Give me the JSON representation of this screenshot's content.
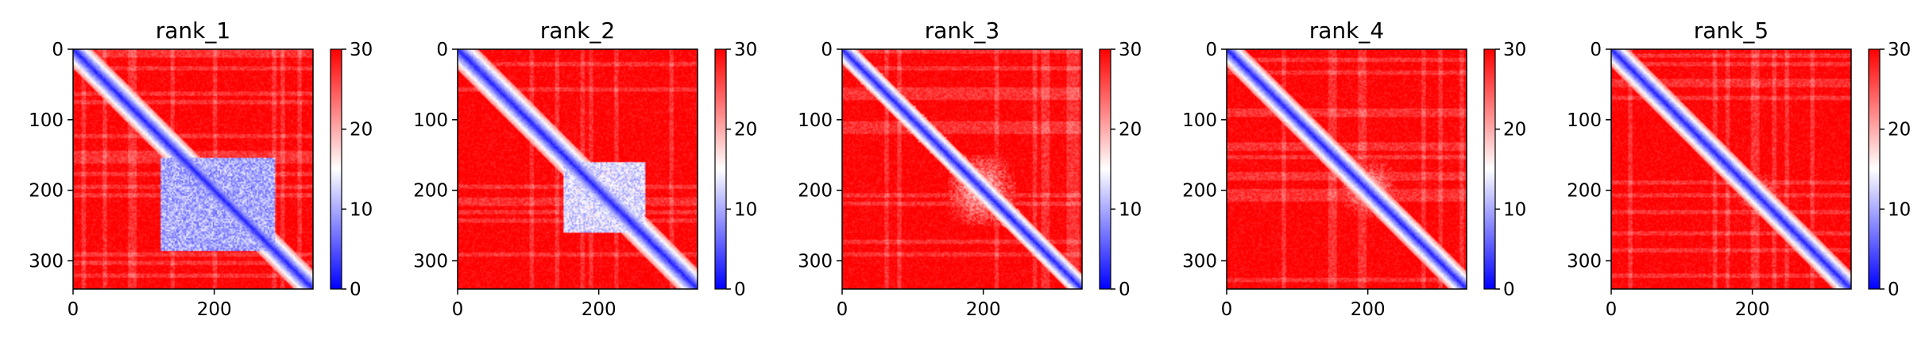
{
  "chart_data": [
    {
      "type": "heatmap",
      "title": "rank_1",
      "matrix_size": 340,
      "xlim": [
        0,
        340
      ],
      "ylim": [
        340,
        0
      ],
      "x_ticks": [
        0,
        200
      ],
      "y_ticks": [
        0,
        100,
        200,
        300
      ],
      "colorbar": {
        "min": 0,
        "max": 30,
        "ticks": [
          0,
          10,
          20,
          30
        ],
        "colormap": "bwr"
      },
      "features": {
        "diag_width": 12,
        "blocks": [
          {
            "x": [
              125,
              285
            ],
            "y": [
              155,
              285
            ],
            "value": 6,
            "soft": false
          }
        ]
      }
    },
    {
      "type": "heatmap",
      "title": "rank_2",
      "matrix_size": 340,
      "xlim": [
        0,
        340
      ],
      "ylim": [
        340,
        0
      ],
      "x_ticks": [
        0,
        200
      ],
      "y_ticks": [
        0,
        100,
        200,
        300
      ],
      "colorbar": {
        "min": 0,
        "max": 30,
        "ticks": [
          0,
          10,
          20,
          30
        ],
        "colormap": "bwr"
      },
      "features": {
        "diag_width": 13,
        "blocks": [
          {
            "x": [
              150,
              265
            ],
            "y": [
              160,
              260
            ],
            "value": 9,
            "soft": false
          }
        ]
      }
    },
    {
      "type": "heatmap",
      "title": "rank_3",
      "matrix_size": 340,
      "xlim": [
        0,
        340
      ],
      "ylim": [
        340,
        0
      ],
      "x_ticks": [
        0,
        200
      ],
      "y_ticks": [
        0,
        100,
        200,
        300
      ],
      "colorbar": {
        "min": 0,
        "max": 30,
        "ticks": [
          0,
          10,
          20,
          30
        ],
        "colormap": "bwr"
      },
      "features": {
        "diag_width": 10,
        "blocks": [
          {
            "x": [
              150,
              245
            ],
            "y": [
              150,
              250
            ],
            "value": 13,
            "soft": true
          }
        ]
      }
    },
    {
      "type": "heatmap",
      "title": "rank_4",
      "matrix_size": 340,
      "xlim": [
        0,
        340
      ],
      "ylim": [
        340,
        0
      ],
      "x_ticks": [
        0,
        200
      ],
      "y_ticks": [
        0,
        100,
        200,
        300
      ],
      "colorbar": {
        "min": 0,
        "max": 30,
        "ticks": [
          0,
          10,
          20,
          30
        ],
        "colormap": "bwr"
      },
      "features": {
        "diag_width": 11,
        "blocks": [
          {
            "x": [
              160,
              240
            ],
            "y": [
              155,
              240
            ],
            "value": 14,
            "soft": true
          }
        ]
      }
    },
    {
      "type": "heatmap",
      "title": "rank_5",
      "matrix_size": 340,
      "xlim": [
        0,
        340
      ],
      "ylim": [
        340,
        0
      ],
      "x_ticks": [
        0,
        200
      ],
      "y_ticks": [
        0,
        100,
        200,
        300
      ],
      "colorbar": {
        "min": 0,
        "max": 30,
        "ticks": [
          0,
          10,
          20,
          30
        ],
        "colormap": "bwr"
      },
      "features": {
        "diag_width": 11,
        "blocks": [
          {
            "x": [
              175,
              245
            ],
            "y": [
              175,
              240
            ],
            "value": 16,
            "soft": true
          }
        ]
      }
    }
  ]
}
